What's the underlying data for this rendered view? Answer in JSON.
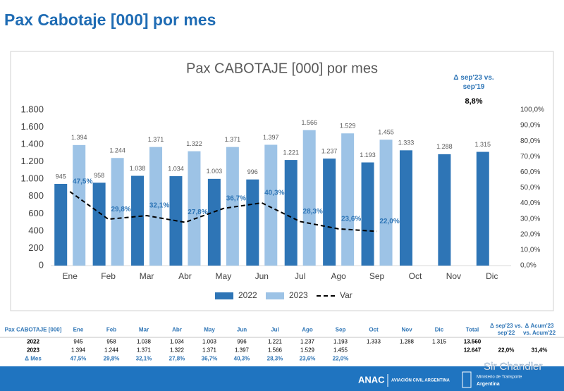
{
  "header": {
    "title": "Pax Cabotaje [000] por mes"
  },
  "chart_data": {
    "type": "bar",
    "title": "Pax CABOTAJE [000] por mes",
    "categories": [
      "Ene",
      "Feb",
      "Mar",
      "Abr",
      "May",
      "Jun",
      "Jul",
      "Ago",
      "Sep",
      "Oct",
      "Nov",
      "Dic"
    ],
    "series": [
      {
        "name": "2022",
        "color": "#2e75b6",
        "values": [
          945,
          958,
          1038,
          1034,
          1003,
          996,
          1221,
          1237,
          1193,
          1333,
          1288,
          1315
        ],
        "value_labels": [
          "945",
          "958",
          "1.038",
          "1.034",
          "1.003",
          "996",
          "1.221",
          "1.237",
          "1.193",
          "1.333",
          "1.288",
          "1.315"
        ]
      },
      {
        "name": "2023",
        "color": "#9dc3e6",
        "values": [
          1394,
          1244,
          1371,
          1322,
          1371,
          1397,
          1566,
          1529,
          1455,
          null,
          null,
          null
        ],
        "value_labels": [
          "1.394",
          "1.244",
          "1.371",
          "1.322",
          "1.371",
          "1.397",
          "1.566",
          "1.529",
          "1.455",
          null,
          null,
          null
        ]
      },
      {
        "name": "Var",
        "type": "line",
        "axis": "y2",
        "color": "#000000",
        "label_color": "#2e75b6",
        "values": [
          47.5,
          29.8,
          32.1,
          27.8,
          36.7,
          40.3,
          28.3,
          23.6,
          22.0,
          null,
          null,
          null
        ],
        "value_labels": [
          "47,5%",
          "29,8%",
          "32,1%",
          "27,8%",
          "36,7%",
          "40,3%",
          "28,3%",
          "23,6%",
          "22,0%",
          null,
          null,
          null
        ]
      }
    ],
    "ylim": [
      0,
      1800
    ],
    "yticks": [
      0,
      200,
      400,
      600,
      800,
      {
        "value": 1000,
        "label": "1.000"
      },
      {
        "value": 1200,
        "label": "1.200"
      },
      {
        "value": 1400,
        "label": "1.400"
      },
      {
        "value": 1600,
        "label": "1.600"
      },
      {
        "value": 1800,
        "label": "1.800"
      }
    ],
    "y2lim": [
      0,
      100
    ],
    "y2ticks": [
      {
        "value": 0,
        "label": "0,0%"
      },
      {
        "value": 10,
        "label": "10,0%"
      },
      {
        "value": 20,
        "label": "20,0%"
      },
      {
        "value": 30,
        "label": "30,0%"
      },
      {
        "value": 40,
        "label": "40,0%"
      },
      {
        "value": 50,
        "label": "50,0%"
      },
      {
        "value": 60,
        "label": "60,0%"
      },
      {
        "value": 70,
        "label": "70,0%"
      },
      {
        "value": 80,
        "label": "80,0%"
      },
      {
        "value": 90,
        "label": "90,0%"
      },
      {
        "value": 100,
        "label": "100,0%"
      }
    ],
    "legend": "bottom",
    "annotation": {
      "text": "Δ sep'23 vs. sep'19",
      "value": 8.8,
      "value_label": "8,8%"
    }
  },
  "table": {
    "header": [
      "Pax CABOTAJE [000]",
      "Ene",
      "Feb",
      "Mar",
      "Abr",
      "May",
      "Jun",
      "Jul",
      "Ago",
      "Sep",
      "Oct",
      "Nov",
      "Dic",
      "Total",
      "Δ sep'23 vs. sep'22",
      "Δ Acum'23 vs. Acum'22"
    ],
    "rows": [
      [
        "2022",
        "945",
        "958",
        "1.038",
        "1.034",
        "1.003",
        "996",
        "1.221",
        "1.237",
        "1.193",
        "1.333",
        "1.288",
        "1.315",
        "13.560",
        null,
        null
      ],
      [
        "2023",
        "1.394",
        "1.244",
        "1.371",
        "1.322",
        "1.371",
        "1.397",
        "1.566",
        "1.529",
        "1.455",
        null,
        null,
        null,
        "12.647",
        "22,0%",
        "31,4%"
      ],
      [
        "Δ Mes",
        "47,5%",
        "29,8%",
        "32,1%",
        "27,8%",
        "36,7%",
        "40,3%",
        "28,3%",
        "23,6%",
        "22,0%",
        null,
        null,
        null,
        null,
        null,
        null
      ]
    ]
  },
  "footer": {
    "brand": "ANAC",
    "brand_sub": "AVIACIÓN CIVIL ARGENTINA",
    "ministry": "Ministerio de Transporte",
    "country": "Argentina",
    "watermark": "Sir Chandler"
  }
}
